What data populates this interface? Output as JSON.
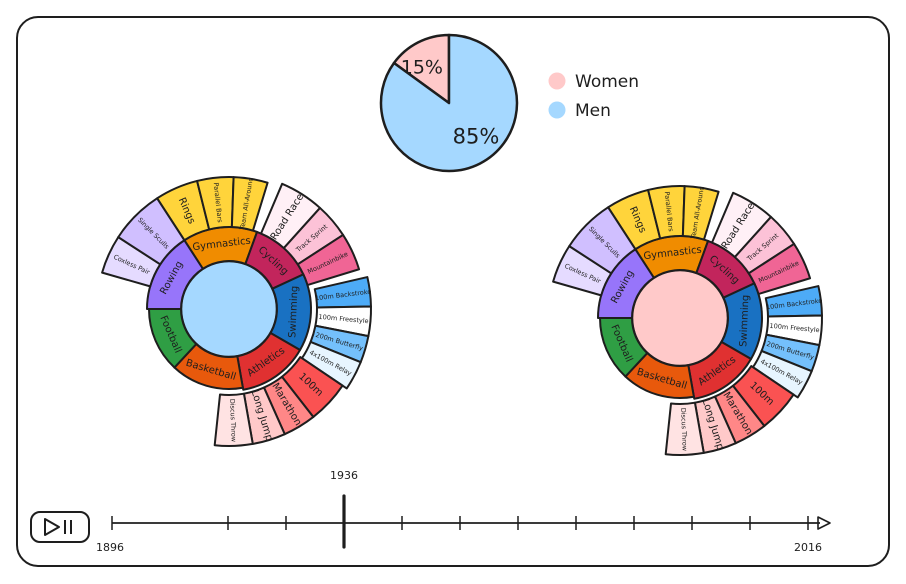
{
  "chart_data": {
    "type": "pie",
    "pie": {
      "slices": [
        {
          "name": "Women",
          "label": "15%",
          "value": 15,
          "color": "#ffc9c9"
        },
        {
          "name": "Men",
          "label": "85%",
          "value": 85,
          "color": "#a5d8ff"
        }
      ]
    },
    "sunbursts": [
      {
        "name": "men",
        "center_color": "#a5d8ff"
      },
      {
        "name": "women",
        "center_color": "#ffc9c9"
      }
    ],
    "sports": [
      {
        "name": "Gymnastics",
        "color": "#f08c00",
        "events": [
          {
            "name": "Rings",
            "color": "#ffd43b"
          },
          {
            "name": "Parallel Bars",
            "color": "#ffd43b"
          },
          {
            "name": "Team All-Around",
            "color": "#ffd43b"
          }
        ]
      },
      {
        "name": "Cycling",
        "color": "#c2255c",
        "events": [
          {
            "name": "Road Race",
            "color": "#fff0f6"
          },
          {
            "name": "Track Sprint",
            "color": "#fcc2d7"
          },
          {
            "name": "Mountainbike",
            "color": "#f06595"
          }
        ]
      },
      {
        "name": "Swimming",
        "color": "#1971c2",
        "events": [
          {
            "name": "100m Backstroke",
            "color": "#4dabf7"
          },
          {
            "name": "100m Freestyle",
            "color": "#ffffff"
          },
          {
            "name": "200m Butterfly",
            "color": "#74c0fc"
          },
          {
            "name": "4x100m Relay",
            "color": "#e7f5ff"
          }
        ]
      },
      {
        "name": "Athletics",
        "color": "#e03131",
        "events": [
          {
            "name": "100m",
            "color": "#fa5252"
          },
          {
            "name": "Marathon",
            "color": "#ff8787"
          },
          {
            "name": "Long Jump",
            "color": "#ffc9c9"
          },
          {
            "name": "Discus Throw",
            "color": "#ffe3e3"
          }
        ]
      },
      {
        "name": "Basketball",
        "color": "#e8590c",
        "events": []
      },
      {
        "name": "Football",
        "color": "#2f9e44",
        "events": []
      },
      {
        "name": "Rowing",
        "color": "#9775fa",
        "events": [
          {
            "name": "Coxless Pair",
            "color": "#e5dbff"
          },
          {
            "name": "Single Sculls",
            "color": "#d0bfff"
          }
        ]
      }
    ],
    "timeline": {
      "start_label": "1896",
      "end_label": "2016",
      "start_year": 1896,
      "end_year": 2016,
      "current_year": 1936,
      "current_label": "1936",
      "tick_years": [
        1896,
        1916,
        1926,
        1936,
        1946,
        1956,
        1966,
        1976,
        1986,
        1996,
        2006,
        2016
      ]
    }
  },
  "controls": {
    "play_pause": {
      "icon": "play-pause-icon"
    }
  }
}
